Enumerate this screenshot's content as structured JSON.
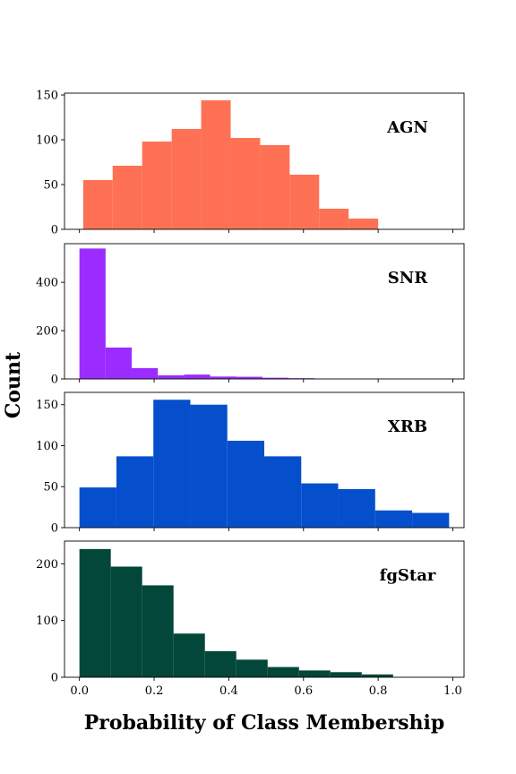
{
  "chart_data": {
    "type": "bar",
    "xlabel": "Probability of Class Membership",
    "ylabel": "Count",
    "xlim": [
      -0.04,
      1.03
    ],
    "x_ticks": [
      "0.0",
      "0.2",
      "0.4",
      "0.6",
      "0.8",
      "1.0"
    ],
    "panels": [
      {
        "label": "AGN",
        "color": "#ff7154",
        "ylim": [
          0,
          152
        ],
        "y_ticks": [
          "0",
          "50",
          "100",
          "150"
        ],
        "bins": [
          0.01,
          0.089,
          0.168,
          0.247,
          0.326,
          0.405,
          0.484,
          0.563,
          0.642,
          0.721,
          0.8
        ],
        "counts": [
          55,
          71,
          98,
          112,
          144,
          102,
          94,
          61,
          23,
          12
        ]
      },
      {
        "label": "SNR",
        "color": "#9b2bff",
        "ylim": [
          0,
          560
        ],
        "y_ticks": [
          "0",
          "200",
          "400"
        ],
        "bins": [
          0.0,
          0.07,
          0.14,
          0.21,
          0.28,
          0.35,
          0.42,
          0.49,
          0.56,
          0.63
        ],
        "counts": [
          540,
          130,
          45,
          15,
          18,
          10,
          9,
          5,
          3
        ]
      },
      {
        "label": "XRB",
        "color": "#054fcd",
        "ylim": [
          0,
          165
        ],
        "y_ticks": [
          "0",
          "50",
          "100",
          "150"
        ],
        "bins": [
          0.0,
          0.099,
          0.198,
          0.297,
          0.396,
          0.495,
          0.594,
          0.693,
          0.792,
          0.891,
          0.99
        ],
        "counts": [
          49,
          87,
          156,
          150,
          106,
          87,
          54,
          47,
          21,
          18
        ]
      },
      {
        "label": "fgStar",
        "color": "#02473a",
        "ylim": [
          0,
          240
        ],
        "y_ticks": [
          "0",
          "100",
          "200"
        ],
        "bins": [
          0.0,
          0.084,
          0.168,
          0.252,
          0.336,
          0.42,
          0.504,
          0.588,
          0.672,
          0.756,
          0.84
        ],
        "counts": [
          226,
          195,
          162,
          77,
          46,
          31,
          18,
          12,
          9,
          5
        ]
      }
    ]
  }
}
